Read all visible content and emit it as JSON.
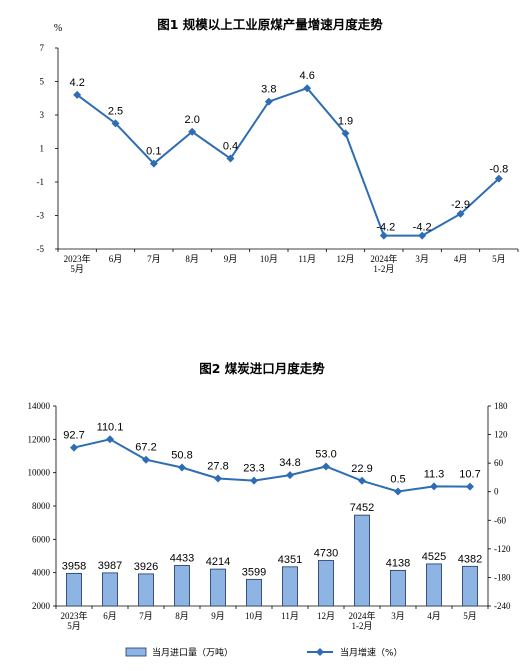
{
  "chart_data": [
    {
      "type": "line",
      "title": "图1  规模以上工业原煤产量增速月度走势",
      "ylabel": "%",
      "ylim": [
        -5,
        7
      ],
      "yticks": [
        "7",
        "5",
        "3",
        "1",
        "-1",
        "-3",
        "-5"
      ],
      "ytick_values": [
        7,
        5,
        3,
        1,
        -1,
        -3,
        -5
      ],
      "categories": [
        [
          "2023年",
          "5月"
        ],
        [
          "6月"
        ],
        [
          "7月"
        ],
        [
          "8月"
        ],
        [
          "9月"
        ],
        [
          "10月"
        ],
        [
          "11月"
        ],
        [
          "12月"
        ],
        [
          "2024年",
          "1-2月"
        ],
        [
          "3月"
        ],
        [
          "4月"
        ],
        [
          "5月"
        ]
      ],
      "series": [
        {
          "values": [
            4.2,
            2.5,
            0.1,
            2.0,
            0.4,
            3.8,
            4.6,
            1.9,
            -4.2,
            -4.2,
            -2.9,
            -0.8
          ],
          "labels": [
            "4.2",
            "2.5",
            "0.1",
            "2.0",
            "0.4",
            "3.8",
            "4.6",
            "1.9",
            "-4.2",
            "-4.2",
            "-2.9",
            "-0.8"
          ]
        }
      ],
      "color": "#2E6DB4",
      "grid": false
    },
    {
      "type": "bar",
      "title": "图2  煤炭进口月度走势",
      "ylim": [
        2000,
        14000
      ],
      "yticks": [
        "14000",
        "12000",
        "10000",
        "8000",
        "6000",
        "4000",
        "2000"
      ],
      "ytick_values": [
        14000,
        12000,
        10000,
        8000,
        6000,
        4000,
        2000
      ],
      "y2lim": [
        -240,
        180
      ],
      "y2ticks": [
        "180",
        "120",
        "60",
        "0",
        "-60",
        "-120",
        "-180",
        "-240"
      ],
      "y2tick_values": [
        180,
        120,
        60,
        0,
        -60,
        -120,
        -180,
        -240
      ],
      "categories": [
        [
          "2023年",
          "5月"
        ],
        [
          "6月"
        ],
        [
          "7月"
        ],
        [
          "8月"
        ],
        [
          "9月"
        ],
        [
          "10月"
        ],
        [
          "11月"
        ],
        [
          "12月"
        ],
        [
          "2024年",
          "1-2月"
        ],
        [
          "3月"
        ],
        [
          "4月"
        ],
        [
          "5月"
        ]
      ],
      "series": [
        {
          "name": "当月进口量（万吨）",
          "type": "bar",
          "axis": "left",
          "values": [
            3958,
            3987,
            3926,
            4433,
            4214,
            3599,
            4351,
            4730,
            7452,
            4138,
            4525,
            4382
          ],
          "labels": [
            "3958",
            "3987",
            "3926",
            "4433",
            "4214",
            "3599",
            "4351",
            "4730",
            "7452",
            "4138",
            "4525",
            "4382"
          ],
          "color": "#8DB4E2",
          "edge": "#1F3864"
        },
        {
          "name": "当月增速（%）",
          "type": "line",
          "axis": "right",
          "values": [
            92.7,
            110.1,
            67.2,
            50.8,
            27.8,
            23.3,
            34.8,
            53.0,
            22.9,
            0.5,
            11.3,
            10.7
          ],
          "labels": [
            "92.7",
            "110.1",
            "67.2",
            "50.8",
            "27.8",
            "23.3",
            "34.8",
            "53.0",
            "22.9",
            "0.5",
            "11.3",
            "10.7"
          ],
          "color": "#2E6DB4"
        }
      ],
      "legend": "bottom",
      "grid": false
    }
  ]
}
